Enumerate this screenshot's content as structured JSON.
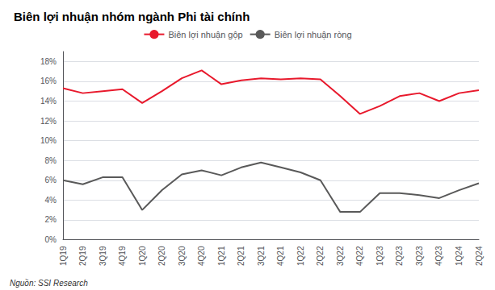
{
  "chart_data": {
    "type": "line",
    "title": "Biên lợi nhuận nhóm ngành Phi tài chính",
    "annotations": [
      "Nguồn: SSI Research"
    ],
    "categories": [
      "1Q19",
      "2Q19",
      "3Q19",
      "4Q19",
      "1Q20",
      "2Q20",
      "3Q20",
      "4Q20",
      "1Q21",
      "2Q21",
      "3Q21",
      "4Q21",
      "1Q22",
      "2Q22",
      "3Q22",
      "4Q22",
      "1Q23",
      "2Q23",
      "3Q23",
      "4Q23",
      "1Q24",
      "2Q24"
    ],
    "series": [
      {
        "name": "Biên lợi nhuận gộp",
        "color": "#e8192c",
        "values": [
          0.153,
          0.148,
          0.15,
          0.152,
          0.138,
          0.15,
          0.163,
          0.171,
          0.157,
          0.161,
          0.163,
          0.162,
          0.163,
          0.162,
          0.145,
          0.127,
          0.135,
          0.145,
          0.148,
          0.14,
          0.148,
          0.151
        ]
      },
      {
        "name": "Biên lợi nhuận ròng",
        "color": "#595959",
        "values": [
          0.06,
          0.056,
          0.063,
          0.063,
          0.03,
          0.05,
          0.066,
          0.07,
          0.065,
          0.073,
          0.078,
          0.073,
          0.068,
          0.06,
          0.028,
          0.028,
          0.047,
          0.047,
          0.045,
          0.042,
          0.05,
          0.057
        ]
      }
    ],
    "ylim": [
      0,
      0.19
    ],
    "yticks": [
      {
        "value": 0,
        "label": "0%"
      },
      {
        "value": 0.02,
        "label": "2%"
      },
      {
        "value": 0.04,
        "label": "4%"
      },
      {
        "value": 0.06,
        "label": "6%"
      },
      {
        "value": 0.08,
        "label": "8%"
      },
      {
        "value": 0.1,
        "label": "10%"
      },
      {
        "value": 0.12,
        "label": "12%"
      },
      {
        "value": 0.14,
        "label": "14%"
      },
      {
        "value": 0.16,
        "label": "16%"
      },
      {
        "value": 0.18,
        "label": "18%"
      }
    ],
    "grid": true,
    "legend": "upper center"
  }
}
